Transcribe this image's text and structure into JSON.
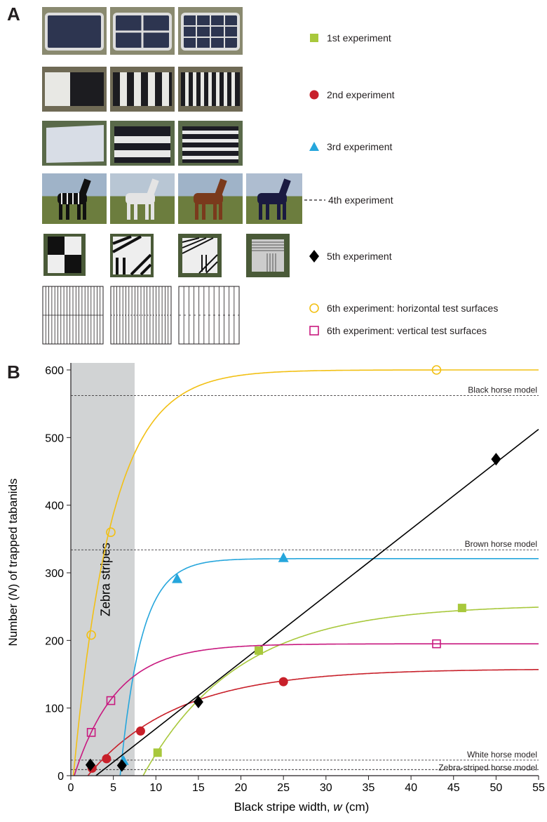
{
  "panel_a_label": "A",
  "panel_b_label": "B",
  "legend": [
    {
      "label": "1st experiment",
      "marker": "square-filled",
      "color": "#a8c83c"
    },
    {
      "label": "2nd experiment",
      "marker": "circle-filled",
      "color": "#c8202a"
    },
    {
      "label": "3rd experiment",
      "marker": "triangle-filled",
      "color": "#26a6dc"
    },
    {
      "label": "4th experiment",
      "marker": "dashed-line",
      "color": "#231f20"
    },
    {
      "label": "5th experiment",
      "marker": "diamond-filled",
      "color": "#000000"
    },
    {
      "label": "6th experiment: horizontal test surfaces",
      "marker": "circle-open",
      "color": "#f2c014"
    },
    {
      "label": "6th experiment: vertical test surfaces",
      "marker": "square-open",
      "color": "#c8197f"
    }
  ],
  "chart_data": {
    "type": "scatter",
    "xlabel_prefix": "Black stripe width, ",
    "xlabel_var": "w",
    "xlabel_suffix": " (cm)",
    "ylabel_prefix": "Number (",
    "ylabel_var": "N",
    "ylabel_suffix": ") of trapped tabanids",
    "xlim": [
      0,
      55
    ],
    "ylim": [
      0,
      600
    ],
    "x_ticks": [
      0,
      5,
      10,
      15,
      20,
      25,
      30,
      35,
      40,
      45,
      50,
      55
    ],
    "y_ticks": [
      0,
      100,
      200,
      300,
      400,
      500,
      600
    ],
    "shaded_region": {
      "x": [
        0,
        7.5
      ],
      "label": "Zebra stripes",
      "color": "#d1d3d4"
    },
    "reference_lines": [
      {
        "label": "Black horse model",
        "y": 562
      },
      {
        "label": "Brown horse model",
        "y": 334
      },
      {
        "label": "White horse model",
        "y": 23
      },
      {
        "label": "Zebra-striped horse model",
        "y": 9
      }
    ],
    "series": [
      {
        "name": "1st experiment",
        "marker": "square-filled",
        "color": "#a8c83c",
        "points": [
          [
            10.2,
            34
          ],
          [
            22.1,
            185
          ],
          [
            46.0,
            248
          ]
        ],
        "curve": {
          "type": "exp",
          "a": 253,
          "x0": 8.5,
          "k": 0.09
        }
      },
      {
        "name": "2nd experiment",
        "marker": "circle-filled",
        "color": "#c8202a",
        "points": [
          [
            2.5,
            11
          ],
          [
            4.2,
            25
          ],
          [
            8.2,
            66
          ],
          [
            25.0,
            139
          ]
        ],
        "curve": {
          "type": "exp",
          "a": 158,
          "x0": 2.0,
          "k": 0.095
        }
      },
      {
        "name": "3rd experiment",
        "marker": "triangle-filled",
        "color": "#26a6dc",
        "points": [
          [
            6.2,
            22
          ],
          [
            12.5,
            291
          ],
          [
            25.0,
            322
          ]
        ],
        "curve": {
          "type": "exp",
          "a": 321,
          "x0": 5.8,
          "k": 0.4
        }
      },
      {
        "name": "5th experiment",
        "marker": "diamond-filled",
        "color": "#000000",
        "points": [
          [
            2.3,
            16
          ],
          [
            6.0,
            15
          ],
          [
            15.0,
            109
          ],
          [
            50.0,
            468
          ]
        ],
        "curve": {
          "type": "line",
          "slope": 9.84,
          "intercept": -29
        }
      },
      {
        "name": "6th experiment: horizontal test surfaces",
        "marker": "circle-open",
        "color": "#f2c014",
        "points": [
          [
            2.4,
            208
          ],
          [
            4.7,
            360
          ],
          [
            43.0,
            600
          ]
        ],
        "curve": {
          "type": "exp",
          "a": 600,
          "x0": 0.3,
          "k": 0.22
        }
      },
      {
        "name": "6th experiment: vertical test surfaces",
        "marker": "square-open",
        "color": "#c8197f",
        "points": [
          [
            2.4,
            64
          ],
          [
            4.7,
            111
          ],
          [
            43.0,
            195
          ]
        ],
        "curve": {
          "type": "exp",
          "a": 195,
          "x0": 0.4,
          "k": 0.2
        }
      }
    ]
  }
}
